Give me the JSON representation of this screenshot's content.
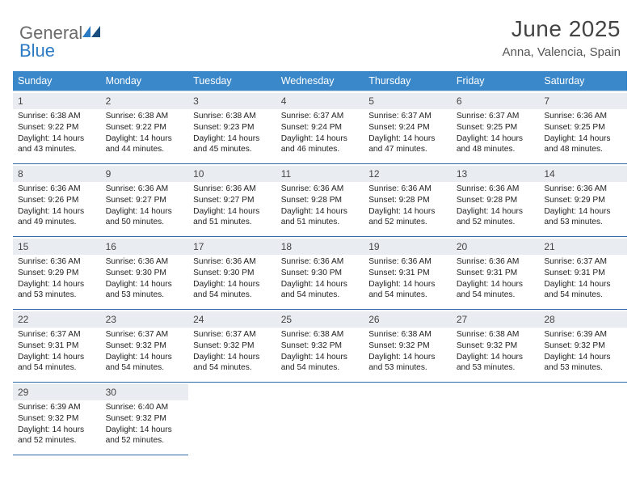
{
  "brand": {
    "part1": "General",
    "part2": "Blue"
  },
  "title": "June 2025",
  "location": "Anna, Valencia, Spain",
  "colors": {
    "header_bg": "#3a88c9",
    "header_text": "#ffffff",
    "daynum_bg": "#e9edf2",
    "border_light": "#c7d7e4",
    "border_dark": "#2d6aa6",
    "brand_gray": "#6b6b6b",
    "brand_blue": "#2b7bc4"
  },
  "weekdays": [
    "Sunday",
    "Monday",
    "Tuesday",
    "Wednesday",
    "Thursday",
    "Friday",
    "Saturday"
  ],
  "days": [
    {
      "n": 1,
      "sunrise": "6:38 AM",
      "sunset": "9:22 PM",
      "dl_h": 14,
      "dl_m": 43
    },
    {
      "n": 2,
      "sunrise": "6:38 AM",
      "sunset": "9:22 PM",
      "dl_h": 14,
      "dl_m": 44
    },
    {
      "n": 3,
      "sunrise": "6:38 AM",
      "sunset": "9:23 PM",
      "dl_h": 14,
      "dl_m": 45
    },
    {
      "n": 4,
      "sunrise": "6:37 AM",
      "sunset": "9:24 PM",
      "dl_h": 14,
      "dl_m": 46
    },
    {
      "n": 5,
      "sunrise": "6:37 AM",
      "sunset": "9:24 PM",
      "dl_h": 14,
      "dl_m": 47
    },
    {
      "n": 6,
      "sunrise": "6:37 AM",
      "sunset": "9:25 PM",
      "dl_h": 14,
      "dl_m": 48
    },
    {
      "n": 7,
      "sunrise": "6:36 AM",
      "sunset": "9:25 PM",
      "dl_h": 14,
      "dl_m": 48
    },
    {
      "n": 8,
      "sunrise": "6:36 AM",
      "sunset": "9:26 PM",
      "dl_h": 14,
      "dl_m": 49
    },
    {
      "n": 9,
      "sunrise": "6:36 AM",
      "sunset": "9:27 PM",
      "dl_h": 14,
      "dl_m": 50
    },
    {
      "n": 10,
      "sunrise": "6:36 AM",
      "sunset": "9:27 PM",
      "dl_h": 14,
      "dl_m": 51
    },
    {
      "n": 11,
      "sunrise": "6:36 AM",
      "sunset": "9:28 PM",
      "dl_h": 14,
      "dl_m": 51
    },
    {
      "n": 12,
      "sunrise": "6:36 AM",
      "sunset": "9:28 PM",
      "dl_h": 14,
      "dl_m": 52
    },
    {
      "n": 13,
      "sunrise": "6:36 AM",
      "sunset": "9:28 PM",
      "dl_h": 14,
      "dl_m": 52
    },
    {
      "n": 14,
      "sunrise": "6:36 AM",
      "sunset": "9:29 PM",
      "dl_h": 14,
      "dl_m": 53
    },
    {
      "n": 15,
      "sunrise": "6:36 AM",
      "sunset": "9:29 PM",
      "dl_h": 14,
      "dl_m": 53
    },
    {
      "n": 16,
      "sunrise": "6:36 AM",
      "sunset": "9:30 PM",
      "dl_h": 14,
      "dl_m": 53
    },
    {
      "n": 17,
      "sunrise": "6:36 AM",
      "sunset": "9:30 PM",
      "dl_h": 14,
      "dl_m": 54
    },
    {
      "n": 18,
      "sunrise": "6:36 AM",
      "sunset": "9:30 PM",
      "dl_h": 14,
      "dl_m": 54
    },
    {
      "n": 19,
      "sunrise": "6:36 AM",
      "sunset": "9:31 PM",
      "dl_h": 14,
      "dl_m": 54
    },
    {
      "n": 20,
      "sunrise": "6:36 AM",
      "sunset": "9:31 PM",
      "dl_h": 14,
      "dl_m": 54
    },
    {
      "n": 21,
      "sunrise": "6:37 AM",
      "sunset": "9:31 PM",
      "dl_h": 14,
      "dl_m": 54
    },
    {
      "n": 22,
      "sunrise": "6:37 AM",
      "sunset": "9:31 PM",
      "dl_h": 14,
      "dl_m": 54
    },
    {
      "n": 23,
      "sunrise": "6:37 AM",
      "sunset": "9:32 PM",
      "dl_h": 14,
      "dl_m": 54
    },
    {
      "n": 24,
      "sunrise": "6:37 AM",
      "sunset": "9:32 PM",
      "dl_h": 14,
      "dl_m": 54
    },
    {
      "n": 25,
      "sunrise": "6:38 AM",
      "sunset": "9:32 PM",
      "dl_h": 14,
      "dl_m": 54
    },
    {
      "n": 26,
      "sunrise": "6:38 AM",
      "sunset": "9:32 PM",
      "dl_h": 14,
      "dl_m": 53
    },
    {
      "n": 27,
      "sunrise": "6:38 AM",
      "sunset": "9:32 PM",
      "dl_h": 14,
      "dl_m": 53
    },
    {
      "n": 28,
      "sunrise": "6:39 AM",
      "sunset": "9:32 PM",
      "dl_h": 14,
      "dl_m": 53
    },
    {
      "n": 29,
      "sunrise": "6:39 AM",
      "sunset": "9:32 PM",
      "dl_h": 14,
      "dl_m": 52
    },
    {
      "n": 30,
      "sunrise": "6:40 AM",
      "sunset": "9:32 PM",
      "dl_h": 14,
      "dl_m": 52
    }
  ],
  "labels": {
    "sunrise": "Sunrise:",
    "sunset": "Sunset:",
    "daylight_prefix": "Daylight:",
    "hours_word": "hours",
    "and_word": "and",
    "minutes_word": "minutes."
  }
}
